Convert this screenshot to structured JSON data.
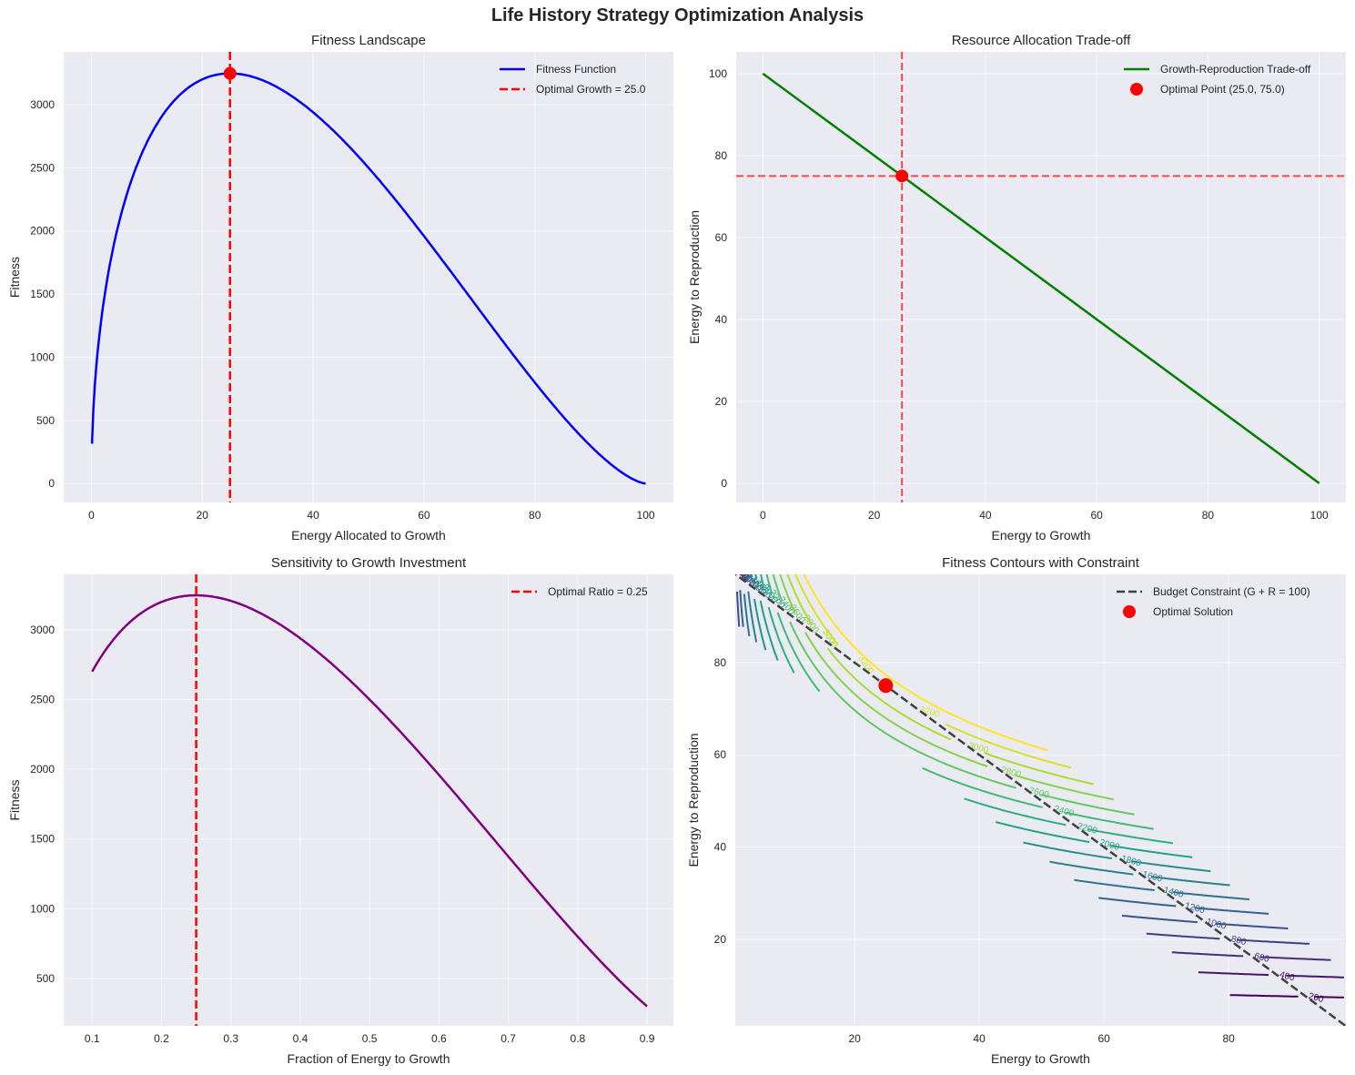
{
  "title": "Life History Strategy Optimization Analysis",
  "chart_data": [
    {
      "type": "line",
      "title": "Fitness Landscape",
      "xlabel": "Energy Allocated to Growth",
      "ylabel": "Fitness",
      "xlim": [
        -5,
        105
      ],
      "ylim": [
        -150,
        3418
      ],
      "xticks": [
        0,
        20,
        40,
        60,
        80,
        100
      ],
      "yticks": [
        0,
        500,
        1000,
        1500,
        2000,
        2500,
        3000
      ],
      "grid": true,
      "legend_position": "top-right",
      "function": "fitness = sqrt(G) * (100 - G)^1.5",
      "series": [
        {
          "name": "Fitness Function",
          "color": "#0000ff",
          "x_range": [
            0.1,
            100
          ],
          "style": "solid"
        },
        {
          "name": "Optimal Growth = 25.0",
          "color": "#ff0000",
          "style": "dashed",
          "vline_x": 25.0
        }
      ],
      "marker": {
        "x": 25.0,
        "y": 3247.6,
        "color": "#ff0000"
      }
    },
    {
      "type": "line",
      "title": "Resource Allocation Trade-off",
      "xlabel": "Energy to Growth",
      "ylabel": "Energy to Reproduction",
      "xlim": [
        -4.8,
        104.8
      ],
      "ylim": [
        -4.7,
        105.3
      ],
      "xticks": [
        0,
        20,
        40,
        60,
        80,
        100
      ],
      "yticks": [
        0,
        20,
        40,
        60,
        80,
        100
      ],
      "grid": true,
      "legend_position": "top-right",
      "series": [
        {
          "name": "Growth-Reproduction Trade-off",
          "color": "#008000",
          "x": [
            0,
            100
          ],
          "y": [
            100,
            0
          ]
        },
        {
          "name": "Optimal Point (25.0, 75.0)",
          "color": "#ff0000",
          "type": "scatter",
          "x": [
            25.0
          ],
          "y": [
            75.0
          ]
        }
      ],
      "reference_lines": {
        "vline_x": 25.0,
        "hline_y": 75.0,
        "color": "#ff0000"
      }
    },
    {
      "type": "line",
      "title": "Sensitivity to Growth Investment",
      "xlabel": "Fraction of Energy to Growth",
      "ylabel": "Fitness",
      "xlim": [
        0.059,
        0.938
      ],
      "ylim": [
        160,
        3398
      ],
      "xticks": [
        0.1,
        0.2,
        0.3,
        0.4,
        0.5,
        0.6,
        0.7,
        0.8,
        0.9
      ],
      "yticks": [
        500,
        1000,
        1500,
        2000,
        2500,
        3000
      ],
      "grid": true,
      "legend_position": "top-right",
      "function": "fitness = sqrt(100f) * (100(1-f))^1.5",
      "series": [
        {
          "name": "Fitness",
          "color": "#800080",
          "x_range": [
            0.1,
            0.9
          ],
          "style": "solid",
          "show_in_legend": false
        },
        {
          "name": "Optimal Ratio = 0.25",
          "color": "#ff0000",
          "style": "dashed",
          "vline_x": 0.25
        }
      ]
    },
    {
      "type": "contour",
      "title": "Fitness Contours with Constraint",
      "xlabel": "Energy to Growth",
      "ylabel": "Energy to Reproduction",
      "xlim": [
        0.87,
        98.8
      ],
      "ylim": [
        1.25,
        99.1
      ],
      "xticks": [
        20,
        40,
        60,
        80
      ],
      "yticks": [
        20,
        40,
        60,
        80
      ],
      "grid": true,
      "legend_position": "top-right",
      "colormap": "viridis",
      "levels": [
        200,
        400,
        600,
        800,
        1000,
        1200,
        1400,
        1600,
        1800,
        2000,
        2200,
        2400,
        2600,
        2800,
        3000,
        3200,
        3400
      ],
      "series": [
        {
          "name": "Budget Constraint (G + R = 100)",
          "color": "#404040",
          "style": "dashed",
          "x": [
            0,
            100
          ],
          "y": [
            100,
            0
          ]
        },
        {
          "name": "Optimal Solution",
          "color": "#ff0000",
          "type": "scatter",
          "x": [
            25.0
          ],
          "y": [
            75.0
          ]
        }
      ]
    }
  ]
}
